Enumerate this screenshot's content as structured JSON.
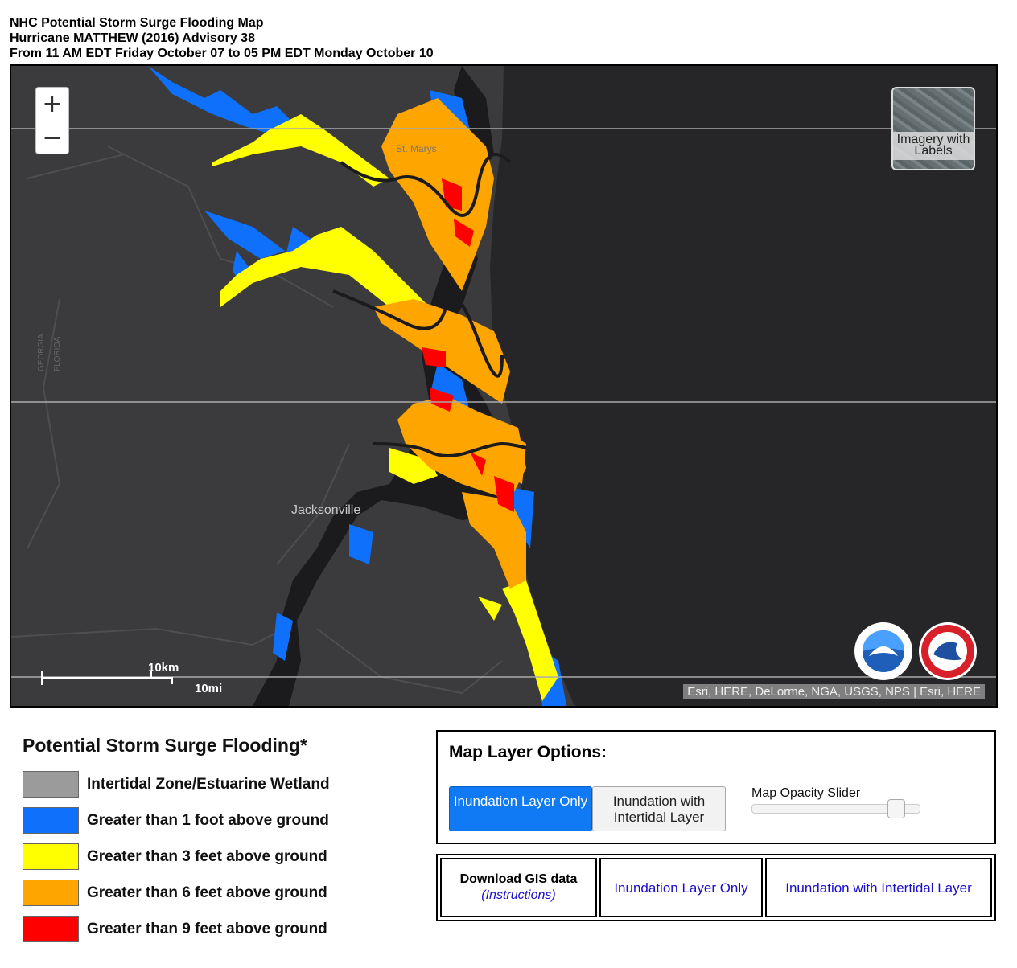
{
  "header": {
    "line1": "NHC Potential Storm Surge Flooding Map",
    "line2": "Hurricane MATTHEW (2016) Advisory 38",
    "line3": "From 11 AM EDT Friday October 07 to 05 PM EDT Monday October 10"
  },
  "map": {
    "zoom_in": "+",
    "zoom_out": "−",
    "basemap_label": "Imagery with Labels",
    "place_labels": {
      "city": "Jacksonville",
      "town": "St. Marys",
      "state_a": "GEORGIA",
      "state_b": "FLORIDA"
    },
    "scale_km": "10km",
    "scale_mi": "10mi",
    "attribution": "Esri, HERE, DeLorme, NGA, USGS, NPS | Esri, HERE",
    "logos": [
      "noaa-logo",
      "national-weather-service-logo"
    ],
    "colors": {
      "land": "#3b3b3d",
      "ocean": "#262629",
      "river": "#1b1b1d",
      "grid": "#aaaaaa"
    }
  },
  "legend": {
    "title": "Potential Storm Surge Flooding*",
    "items": [
      {
        "label": "Intertidal Zone/Estuarine Wetland",
        "color": "#9b9b9b"
      },
      {
        "label": "Greater than 1 foot above ground",
        "color": "#0f70fb"
      },
      {
        "label": "Greater than 3 feet above ground",
        "color": "#ffff00"
      },
      {
        "label": "Greater than 6 feet above ground",
        "color": "#ffa500"
      },
      {
        "label": "Greater than 9 feet above ground",
        "color": "#ff0000"
      }
    ]
  },
  "options": {
    "title": "Map Layer Options:",
    "btn_inundation": "Inundation Layer Only",
    "btn_intertidal": "Inundation with Intertidal Layer",
    "slider_label": "Map Opacity Slider",
    "opacity": 0.9
  },
  "download": {
    "title": "Download GIS data",
    "instructions": "(Instructions)",
    "link1": "Inundation Layer Only",
    "link2": "Inundation with Intertidal Layer"
  }
}
